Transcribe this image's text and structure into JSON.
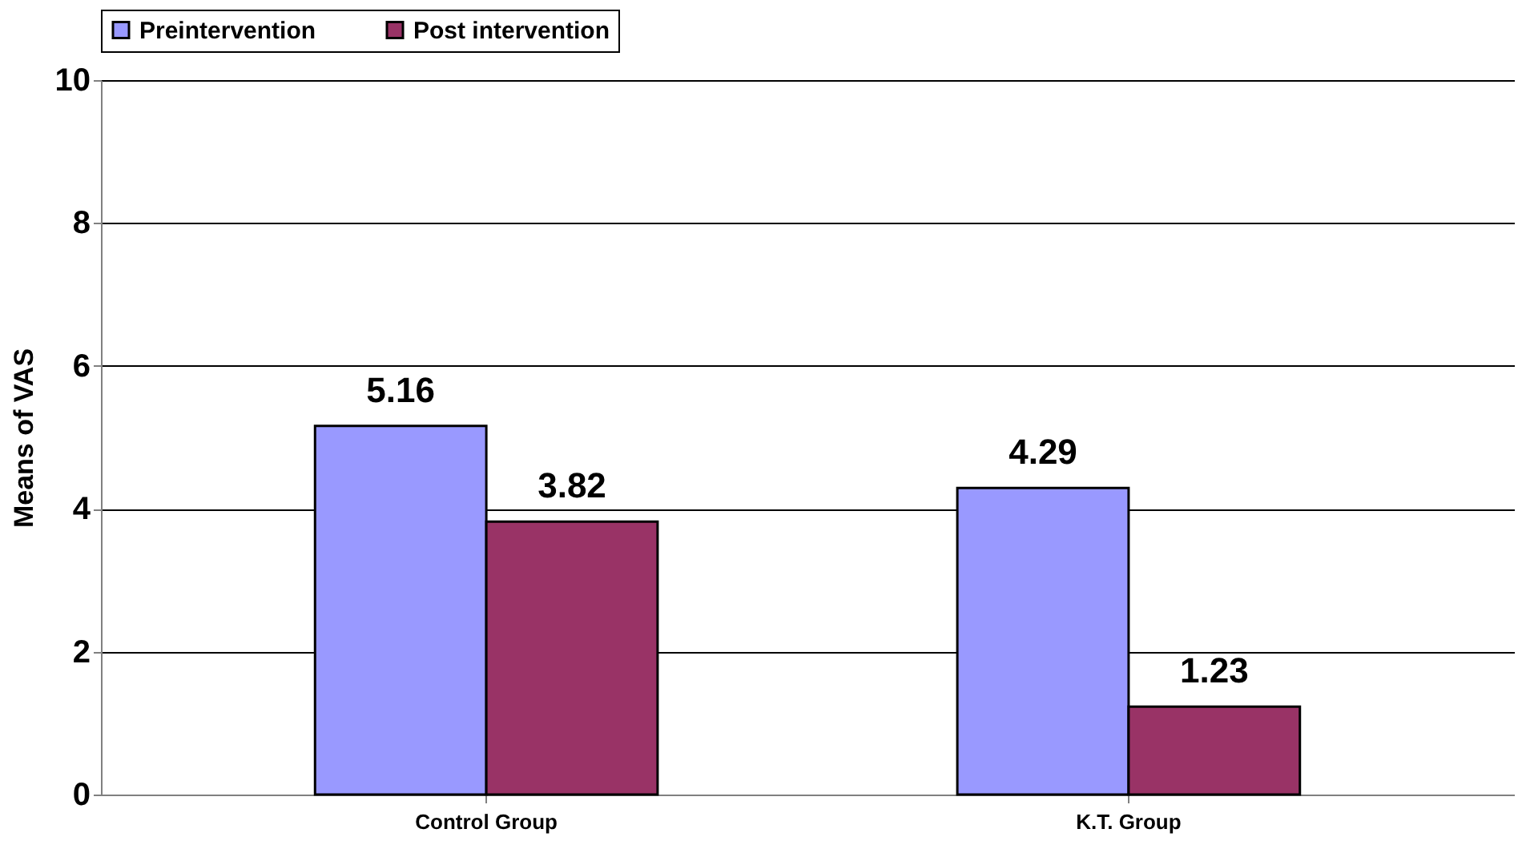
{
  "chart_data": {
    "type": "bar",
    "ylabel": "Means of VAS",
    "categories": [
      "Control Group",
      "K.T. Group"
    ],
    "series": [
      {
        "name": "Preintervention",
        "color": "#9999ff",
        "values": [
          5.16,
          4.29
        ]
      },
      {
        "name": "Post intervention",
        "color": "#993366",
        "values": [
          3.82,
          1.23
        ]
      }
    ],
    "ylim": [
      0,
      10
    ],
    "yticks": [
      0,
      2,
      4,
      6,
      8,
      10
    ],
    "grid": "y",
    "legend": "top",
    "data_labels": true
  }
}
